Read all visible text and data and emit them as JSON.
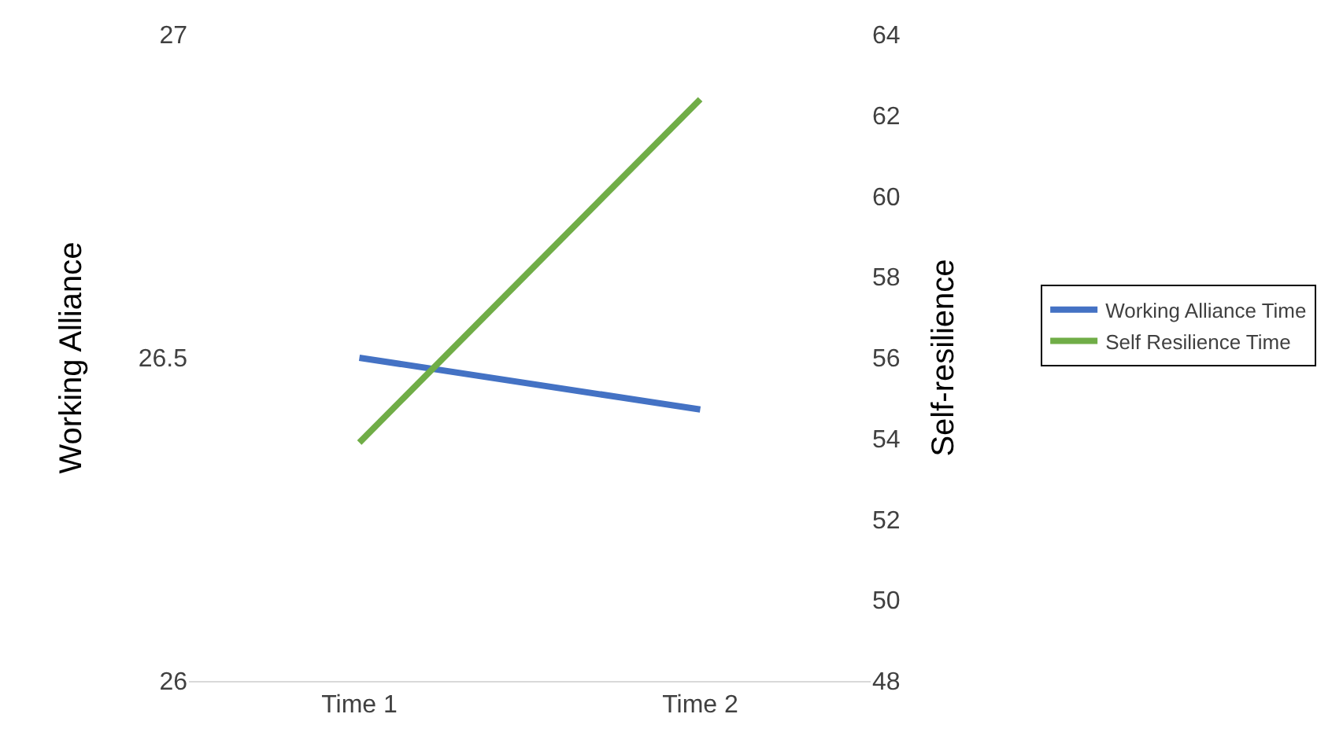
{
  "chart_data": {
    "type": "line",
    "categories": [
      "Time 1",
      "Time 2"
    ],
    "ylabel": "Working Alliance",
    "y2label": "Self-resilience",
    "ylim": [
      26,
      27
    ],
    "yticks": [
      26,
      26.5,
      27
    ],
    "y2lim": [
      48,
      64
    ],
    "y2ticks": [
      48,
      50,
      52,
      54,
      56,
      58,
      60,
      62,
      64
    ],
    "series": [
      {
        "name": "Working Alliance Time",
        "color": "#4472c4",
        "values": [
          26.5,
          26.42
        ]
      },
      {
        "name": "Self Resilience Time",
        "color": "#70ad47",
        "values": [
          53.9,
          62.4
        ],
        "axis": "y2"
      }
    ],
    "grid": false,
    "legend": "right",
    "marker": "none",
    "line_style": "solid"
  }
}
